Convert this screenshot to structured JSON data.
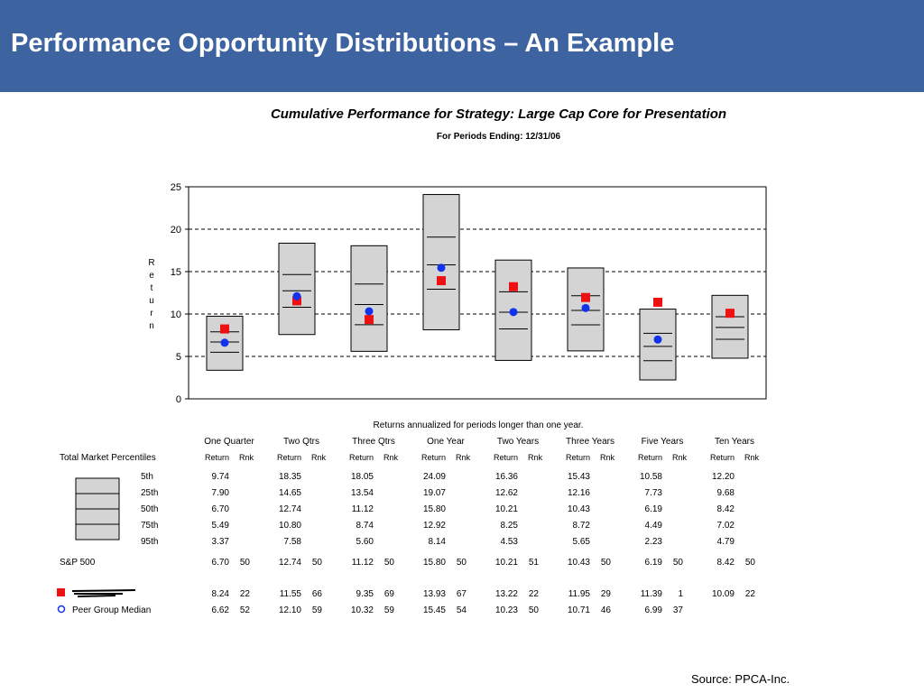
{
  "slide": {
    "title": "Performance Opportunity Distributions – An Example",
    "source": "Source:  PPCA-Inc."
  },
  "chart_data": {
    "type": "box",
    "title": "Cumulative Performance for Strategy: Large Cap Core for Presentation",
    "subtitle": "For Periods Ending: 12/31/06",
    "ylabel": "Return",
    "ylim": [
      0,
      25
    ],
    "yticks": [
      0,
      5,
      10,
      15,
      20,
      25
    ],
    "grid": true,
    "note": "Returns annualized for periods longer than one year.",
    "categories": [
      "One Quarter",
      "Two Qtrs",
      "Three Qtrs",
      "One Year",
      "Two Years",
      "Three Years",
      "Five Years",
      "Ten Years"
    ],
    "percentiles": {
      "label": "Total Market Percentiles",
      "rows": [
        {
          "name": "5th",
          "values": [
            "9.74",
            "18.35",
            "18.05",
            "24.09",
            "16.36",
            "15.43",
            "10.58",
            "12.20"
          ]
        },
        {
          "name": "25th",
          "values": [
            "7.90",
            "14.65",
            "13.54",
            "19.07",
            "12.62",
            "12.16",
            "7.73",
            "9.68"
          ]
        },
        {
          "name": "50th",
          "values": [
            "6.70",
            "12.74",
            "11.12",
            "15.80",
            "10.21",
            "10.43",
            "6.19",
            "8.42"
          ]
        },
        {
          "name": "75th",
          "values": [
            "5.49",
            "10.80",
            "8.74",
            "12.92",
            "8.25",
            "8.72",
            "4.49",
            "7.02"
          ]
        },
        {
          "name": "95th",
          "values": [
            "3.37",
            "7.58",
            "5.60",
            "8.14",
            "4.53",
            "5.65",
            "2.23",
            "4.79"
          ]
        }
      ]
    },
    "series": [
      {
        "name": "S&P 500",
        "returns": [
          "6.70",
          "12.74",
          "11.12",
          "15.80",
          "10.21",
          "10.43",
          "6.19",
          "8.42"
        ],
        "ranks": [
          "50",
          "50",
          "50",
          "50",
          "51",
          "50",
          "50",
          "50"
        ]
      },
      {
        "name": "",
        "marker": "square",
        "color": "#ee1111",
        "returns": [
          "8.24",
          "11.55",
          "9.35",
          "13.93",
          "13.22",
          "11.95",
          "11.39",
          "10.09"
        ],
        "ranks": [
          "22",
          "66",
          "69",
          "67",
          "22",
          "29",
          "1",
          "22"
        ]
      },
      {
        "name": "Peer Group Median",
        "marker": "circle",
        "color": "#1133ee",
        "returns": [
          "6.62",
          "12.10",
          "10.32",
          "15.45",
          "10.23",
          "10.71",
          "6.99",
          ""
        ],
        "ranks": [
          "52",
          "59",
          "59",
          "54",
          "50",
          "46",
          "37",
          ""
        ]
      }
    ],
    "col_headers": {
      "return": "Return",
      "rank": "Rnk"
    }
  }
}
